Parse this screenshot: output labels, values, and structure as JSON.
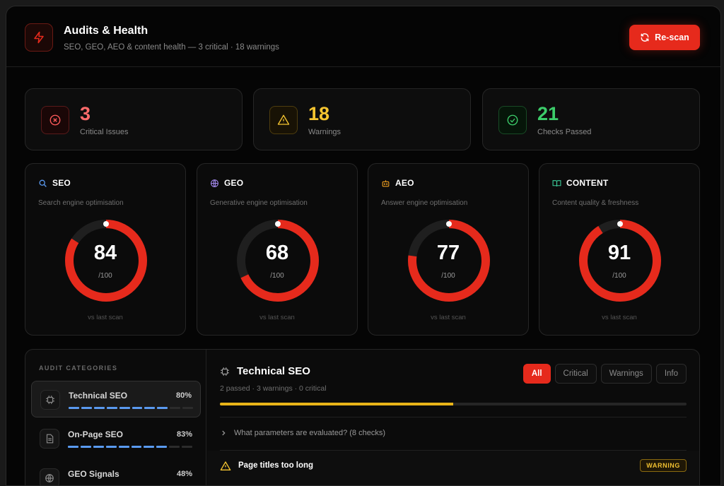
{
  "colors": {
    "accent": "#e62a1c",
    "critical": "#ff6b6b",
    "warning": "#f4c430",
    "passed": "#3ccc6a",
    "bar": "#5a9af0",
    "progress": "#e8b418"
  },
  "header": {
    "icon": "lightning-icon",
    "title": "Audits & Health",
    "subtitle": "SEO, GEO, AEO & content health — 3 critical · 18 warnings",
    "rescan_label": "Re-scan",
    "rescan_icon": "refresh-icon"
  },
  "stats": [
    {
      "value": "3",
      "label": "Critical Issues",
      "icon": "x-circle-icon"
    },
    {
      "value": "18",
      "label": "Warnings",
      "icon": "warning-triangle-icon"
    },
    {
      "value": "21",
      "label": "Checks Passed",
      "icon": "check-circle-icon"
    }
  ],
  "scores": [
    {
      "title": "SEO",
      "desc": "Search engine optimisation",
      "value": 84,
      "max_label": "/100",
      "foot": "vs last scan",
      "icon": "search-icon"
    },
    {
      "title": "GEO",
      "desc": "Generative engine optimisation",
      "value": 68,
      "max_label": "/100",
      "foot": "vs last scan",
      "icon": "globe-icon"
    },
    {
      "title": "AEO",
      "desc": "Answer engine optimisation",
      "value": 77,
      "max_label": "/100",
      "foot": "vs last scan",
      "icon": "robot-icon"
    },
    {
      "title": "CONTENT",
      "desc": "Content quality & freshness",
      "value": 91,
      "max_label": "/100",
      "foot": "vs last scan",
      "icon": "book-icon"
    }
  ],
  "categories": {
    "title": "AUDIT CATEGORIES",
    "items": [
      {
        "name": "Technical SEO",
        "pct": "80%",
        "progress": 0.8,
        "icon": "chip-icon"
      },
      {
        "name": "On-Page SEO",
        "pct": "83%",
        "progress": 0.83,
        "icon": "document-icon"
      },
      {
        "name": "GEO Signals",
        "pct": "48%",
        "progress": 0.48,
        "icon": "globe-icon"
      }
    ]
  },
  "detail": {
    "title": "Technical SEO",
    "subtitle": "2 passed · 3 warnings · 0 critical",
    "filters": [
      "All",
      "Critical",
      "Warnings",
      "Info"
    ],
    "progress": 0.5,
    "expander": "What parameters are evaluated? (8 checks)",
    "issue": {
      "title": "Page titles too long",
      "badge": "WARNING"
    }
  }
}
